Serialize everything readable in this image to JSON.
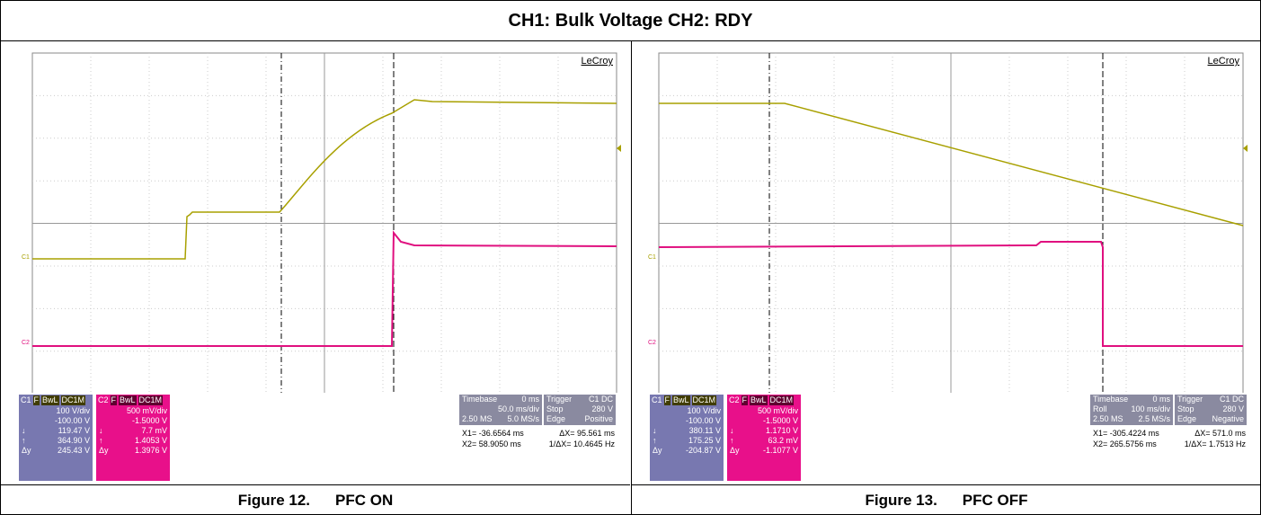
{
  "header": {
    "title": "CH1: Bulk Voltage CH2: RDY"
  },
  "figures": [
    {
      "number": "Figure 12.",
      "caption": "PFC ON",
      "brand": "LeCroy",
      "ch1_marker": "C1",
      "ch2_marker": "C2",
      "c1": {
        "label": "C1",
        "flags": [
          "F",
          "BwL",
          "DC1M"
        ],
        "lines": [
          "100 V/div",
          "-100.00 V",
          "119.47 V",
          "364.90 V",
          "245.43 V"
        ],
        "symbols": [
          "↓",
          "↑",
          "Δy"
        ]
      },
      "c2": {
        "label": "C2",
        "flags": [
          "F",
          "BwL",
          "DC1M"
        ],
        "lines": [
          "500 mV/div",
          "-1.5000 V",
          "7.7 mV",
          "1.4053 V",
          "1.3976 V"
        ],
        "symbols": [
          "↓",
          "↑",
          "Δy"
        ]
      },
      "timebase": {
        "rows": [
          [
            "Timebase",
            "0 ms"
          ],
          [
            "",
            "50.0 ms/div"
          ],
          [
            "2.50 MS",
            "5.0 MS/s"
          ]
        ]
      },
      "trigger": {
        "rows": [
          [
            "Trigger",
            "C1 DC"
          ],
          [
            "Stop",
            "280 V"
          ],
          [
            "Edge",
            "Positive"
          ]
        ]
      },
      "cursors": [
        [
          "X1= -36.6564 ms",
          "ΔX= 95.561 ms"
        ],
        [
          "X2= 58.9050 ms",
          "1/ΔX= 10.4645 Hz"
        ]
      ]
    },
    {
      "number": "Figure 13.",
      "caption": "PFC OFF",
      "brand": "LeCroy",
      "ch1_marker": "C1",
      "ch2_marker": "C2",
      "c1": {
        "label": "C1",
        "flags": [
          "F",
          "BwL",
          "DC1M"
        ],
        "lines": [
          "100 V/div",
          "-100.00 V",
          "380.11 V",
          "175.25 V",
          "-204.87 V"
        ],
        "symbols": [
          "↓",
          "↑",
          "Δy"
        ]
      },
      "c2": {
        "label": "C2",
        "flags": [
          "F",
          "BwL",
          "DC1M"
        ],
        "lines": [
          "500 mV/div",
          "-1.5000 V",
          "1.1710 V",
          "63.2 mV",
          "-1.1077 V"
        ],
        "symbols": [
          "↓",
          "↑",
          "Δy"
        ]
      },
      "timebase": {
        "rows": [
          [
            "Timebase",
            "0 ms"
          ],
          [
            "Roll",
            "100 ms/div"
          ],
          [
            "2.50 MS",
            "2.5 MS/s"
          ]
        ]
      },
      "trigger": {
        "rows": [
          [
            "Trigger",
            "C1 DC"
          ],
          [
            "Stop",
            "280 V"
          ],
          [
            "Edge",
            "Negative"
          ]
        ]
      },
      "cursors": [
        [
          "X1= -305.4224 ms",
          "ΔX= 571.0 ms"
        ],
        [
          "X2= 265.5756 ms",
          "1/ΔX= 1.7513 Hz"
        ]
      ]
    }
  ]
}
